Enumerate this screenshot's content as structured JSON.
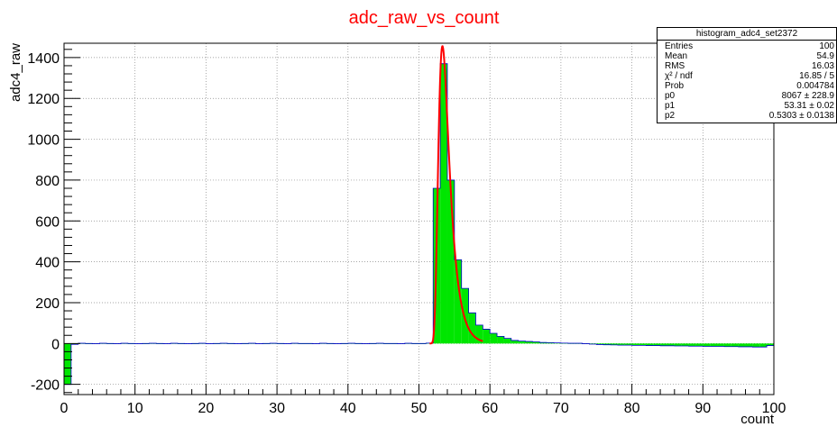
{
  "chart_data": {
    "type": "bar",
    "title": "adc_raw_vs_count",
    "xlabel": "count",
    "ylabel": "adc4_raw",
    "xlim": [
      0,
      100
    ],
    "ylim": [
      -250,
      1470
    ],
    "x_ticks": [
      0,
      10,
      20,
      30,
      40,
      50,
      60,
      70,
      80,
      90,
      100
    ],
    "y_ticks": [
      -200,
      0,
      200,
      400,
      600,
      800,
      1000,
      1200,
      1400
    ],
    "grid": true,
    "bin_width": 1,
    "x": [
      0,
      1,
      2,
      3,
      4,
      5,
      6,
      7,
      8,
      9,
      10,
      11,
      12,
      13,
      14,
      15,
      16,
      17,
      18,
      19,
      20,
      21,
      22,
      23,
      24,
      25,
      26,
      27,
      28,
      29,
      30,
      31,
      32,
      33,
      34,
      35,
      36,
      37,
      38,
      39,
      40,
      41,
      42,
      43,
      44,
      45,
      46,
      47,
      48,
      49,
      50,
      51,
      52,
      53,
      54,
      55,
      56,
      57,
      58,
      59,
      60,
      61,
      62,
      63,
      64,
      65,
      66,
      67,
      68,
      69,
      70,
      71,
      72,
      73,
      74,
      75,
      76,
      77,
      78,
      79,
      80,
      81,
      82,
      83,
      84,
      85,
      86,
      87,
      88,
      89,
      90,
      91,
      92,
      93,
      94,
      95,
      96,
      97,
      98,
      99
    ],
    "values": [
      -200,
      -4,
      1,
      0,
      -1,
      1,
      0,
      -1,
      1,
      0,
      -1,
      0,
      1,
      0,
      -1,
      1,
      0,
      -1,
      0,
      1,
      -1,
      0,
      1,
      0,
      -1,
      0,
      1,
      -1,
      0,
      1,
      0,
      -1,
      1,
      0,
      0,
      -1,
      1,
      0,
      -1,
      0,
      1,
      0,
      -1,
      0,
      1,
      0,
      0,
      -1,
      1,
      0,
      0,
      2,
      760,
      1370,
      800,
      410,
      270,
      150,
      90,
      70,
      50,
      35,
      25,
      15,
      12,
      10,
      8,
      5,
      4,
      3,
      2,
      1,
      1,
      -1,
      -3,
      -5,
      -6,
      -7,
      -8,
      -8,
      -9,
      -9,
      -10,
      -10,
      -11,
      -11,
      -12,
      -12,
      -13,
      -13,
      -14,
      -14,
      -14,
      -15,
      -15,
      -16,
      -16,
      -17,
      -17,
      -10
    ],
    "fit": {
      "p0": 8067,
      "p1": 53.31,
      "p2": 0.5303,
      "x_range": [
        51.5,
        59
      ]
    },
    "colors": {
      "fill": "#00e600",
      "outline": "#0000cc",
      "fit": "#ff0000",
      "title": "#ff0000"
    }
  },
  "stats": {
    "title": "histogram_adc4_set2372",
    "rows": [
      {
        "label": "Entries",
        "value": "100"
      },
      {
        "label": "Mean",
        "value": "54.9"
      },
      {
        "label": "RMS",
        "value": "16.03"
      },
      {
        "label": "χ² / ndf",
        "value": "16.85 / 5"
      },
      {
        "label": "Prob",
        "value": "0.004784"
      },
      {
        "label": "p0",
        "value": "8067 ± 228.9"
      },
      {
        "label": "p1",
        "value": "53.31 ± 0.02"
      },
      {
        "label": "p2",
        "value": "0.5303 ± 0.0138"
      }
    ]
  }
}
